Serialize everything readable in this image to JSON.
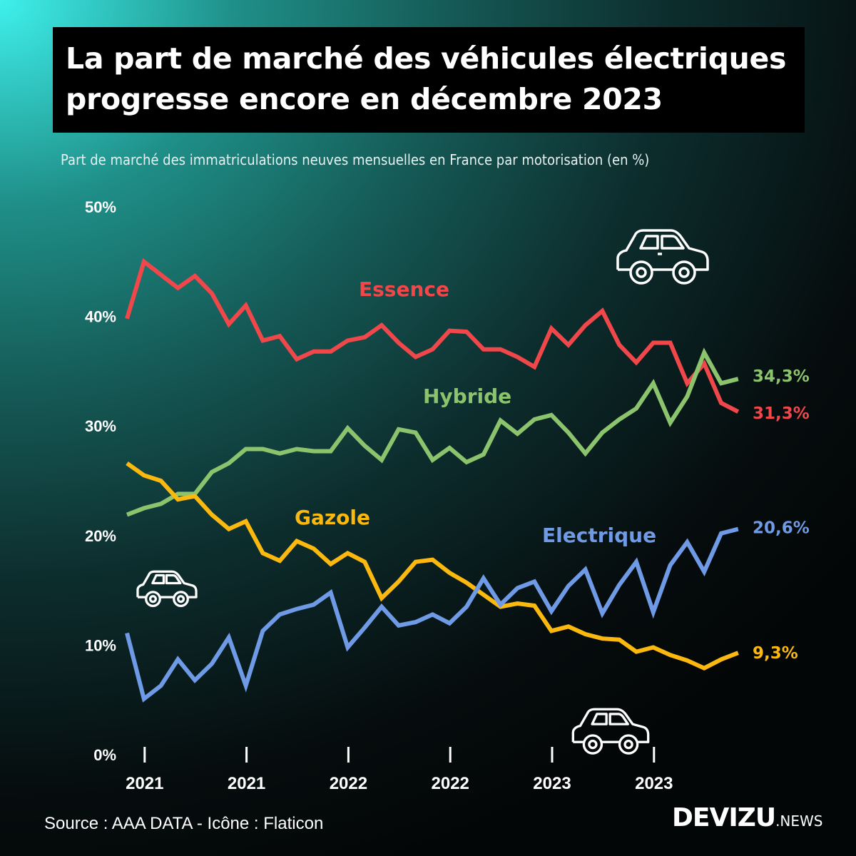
{
  "header": {
    "title_line1": "La part de marché des véhicules électriques",
    "title_line2": "progresse encore en décembre 2023",
    "subtitle": "Part de marché des immatriculations neuves mensuelles en France par motorisation (en %)"
  },
  "footer": {
    "source": "Source : AAA DATA - Icône : Flaticon",
    "brand_main": "DEVIZU",
    "brand_suffix": ".NEWS"
  },
  "icons": [
    "car-icon",
    "car-icon",
    "car-icon"
  ],
  "chart_data": {
    "type": "line",
    "title": "La part de marché des véhicules électriques progresse encore en décembre 2023",
    "subtitle": "Part de marché des immatriculations neuves mensuelles en France par motorisation (en %)",
    "x": [
      "2020-12",
      "2021-01",
      "2021-02",
      "2021-03",
      "2021-04",
      "2021-05",
      "2021-06",
      "2021-07",
      "2021-08",
      "2021-09",
      "2021-10",
      "2021-11",
      "2021-12",
      "2022-01",
      "2022-02",
      "2022-03",
      "2022-04",
      "2022-05",
      "2022-06",
      "2022-07",
      "2022-08",
      "2022-09",
      "2022-10",
      "2022-11",
      "2022-12",
      "2023-01",
      "2023-02",
      "2023-03",
      "2023-04",
      "2023-05",
      "2023-06",
      "2023-07",
      "2023-08",
      "2023-09",
      "2023-10",
      "2023-11",
      "2023-12"
    ],
    "x_ticks": [
      {
        "at": "2021-01",
        "label": "2021"
      },
      {
        "at": "2021-07",
        "label": "2021"
      },
      {
        "at": "2022-01",
        "label": "2022"
      },
      {
        "at": "2022-07",
        "label": "2022"
      },
      {
        "at": "2023-01",
        "label": "2023"
      },
      {
        "at": "2023-07",
        "label": "2023"
      }
    ],
    "y_ticks": [
      "0%",
      "10%",
      "20%",
      "30%",
      "40%",
      "50%"
    ],
    "ylim": [
      0,
      50
    ],
    "grid": false,
    "legend": "inline labels",
    "series": [
      {
        "name": "Essence",
        "color": "#f0474b",
        "end_label": "31,3%",
        "values": [
          39.8,
          45.0,
          43.8,
          42.6,
          43.7,
          42.1,
          39.3,
          41.0,
          37.8,
          38.2,
          36.1,
          36.8,
          36.8,
          37.8,
          38.1,
          39.2,
          37.6,
          36.3,
          37.0,
          38.7,
          38.6,
          37.0,
          37.0,
          36.3,
          35.4,
          38.9,
          37.4,
          39.2,
          40.5,
          37.4,
          35.8,
          37.6,
          37.6,
          33.9,
          35.7,
          32.1,
          31.3
        ]
      },
      {
        "name": "Hybride",
        "color": "#8cc46e",
        "end_label": "34,3%",
        "values": [
          21.9,
          22.5,
          22.9,
          23.8,
          23.8,
          25.8,
          26.6,
          27.9,
          27.9,
          27.5,
          27.9,
          27.7,
          27.7,
          29.8,
          28.2,
          26.9,
          29.7,
          29.4,
          26.9,
          28.0,
          26.7,
          27.4,
          30.5,
          29.3,
          30.6,
          31.0,
          29.4,
          27.5,
          29.4,
          30.6,
          31.6,
          33.9,
          30.3,
          32.7,
          36.7,
          33.9,
          34.3
        ]
      },
      {
        "name": "Gazole",
        "color": "#fbb80f",
        "end_label": "9,3%",
        "values": [
          26.6,
          25.5,
          25.0,
          23.3,
          23.6,
          21.9,
          20.6,
          21.3,
          18.4,
          17.7,
          19.5,
          18.8,
          17.4,
          18.4,
          17.6,
          14.3,
          15.8,
          17.6,
          17.8,
          16.6,
          15.7,
          14.6,
          13.5,
          13.8,
          13.6,
          11.3,
          11.7,
          11.0,
          10.6,
          10.5,
          9.4,
          9.8,
          9.1,
          8.6,
          7.9,
          8.7,
          9.3
        ]
      },
      {
        "name": "Electrique",
        "color": "#6f9ae6",
        "end_label": "20,6%",
        "values": [
          11.1,
          5.1,
          6.3,
          8.7,
          6.8,
          8.3,
          10.7,
          6.3,
          11.3,
          12.8,
          13.3,
          13.7,
          14.8,
          9.8,
          11.6,
          13.5,
          11.8,
          12.1,
          12.8,
          12.0,
          13.5,
          16.1,
          13.7,
          15.2,
          15.8,
          13.1,
          15.4,
          16.9,
          12.9,
          15.5,
          17.6,
          13.0,
          17.3,
          19.4,
          16.7,
          20.2,
          20.6
        ]
      }
    ]
  }
}
